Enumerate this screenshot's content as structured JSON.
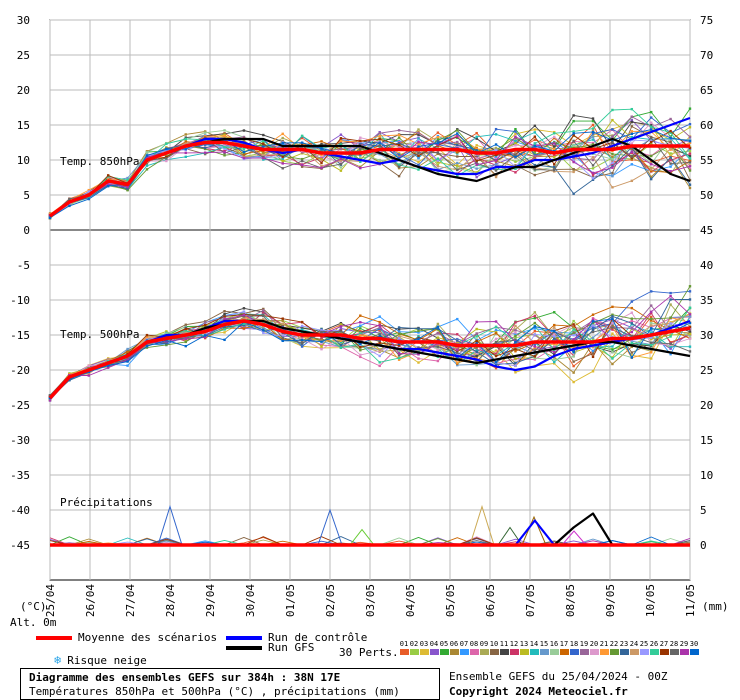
{
  "chart_data": {
    "type": "line",
    "title": "Diagramme des ensembles GEFS sur 384h : 38N 17E",
    "subtitle": "Températures 850hPa et 500hPa (°C) , précipitations (mm)",
    "left_axis": {
      "unit": "(°C)",
      "ticks": [
        30,
        25,
        20,
        15,
        10,
        5,
        0,
        -5,
        -10,
        -15,
        -20,
        -25,
        -30,
        -35,
        -40,
        -45
      ],
      "ylim": [
        -50,
        30
      ]
    },
    "right_axis": {
      "unit": "(mm)",
      "ticks": [
        75,
        70,
        65,
        60,
        55,
        50,
        45,
        40,
        35,
        30,
        25,
        20,
        15,
        10,
        5,
        0
      ]
    },
    "x_unit": "Alt. 0m",
    "x_ticks": [
      "25/04",
      "26/04",
      "27/04",
      "28/04",
      "29/04",
      "30/04",
      "01/05",
      "02/05",
      "03/05",
      "04/05",
      "05/05",
      "06/05",
      "07/05",
      "08/05",
      "09/05",
      "10/05",
      "11/05"
    ],
    "panel_labels": {
      "t850": "Temp. 850hPa",
      "t500": "Temp. 500hPa",
      "precip": "Précipitations"
    },
    "series": [
      {
        "name": "Moyenne des scénarios",
        "color": "#ff0000",
        "t850": [
          2,
          4,
          5,
          7,
          6.5,
          10,
          11,
          12,
          12.5,
          12.5,
          12,
          11.5,
          11.5,
          11.5,
          11,
          11,
          11,
          11.5,
          11.5,
          11.5,
          11.5,
          11.5,
          11,
          11,
          11.5,
          11.5,
          11,
          11.5,
          11.5,
          11.5,
          12,
          12,
          12,
          12
        ],
        "t500": [
          -24,
          -21,
          -20,
          -19,
          -18,
          -16,
          -15.5,
          -15,
          -14.5,
          -13.5,
          -13,
          -13.5,
          -14.5,
          -15,
          -15,
          -15,
          -15.5,
          -15.5,
          -16,
          -16,
          -16,
          -16.5,
          -16.5,
          -16.5,
          -16.5,
          -16,
          -16,
          -16,
          -16,
          -15.5,
          -15.5,
          -15,
          -14.5,
          -14
        ]
      },
      {
        "name": "Run de contrôle",
        "color": "#0000ff",
        "t850": [
          2,
          4,
          5,
          7,
          6.5,
          10,
          11,
          12,
          13,
          13,
          12.5,
          11.5,
          11,
          11.5,
          11,
          10.5,
          10,
          9.5,
          10,
          9,
          8.5,
          8,
          8,
          9,
          9,
          10,
          10,
          10.5,
          11,
          12,
          13,
          14,
          15,
          16
        ],
        "t500": [
          -24,
          -21,
          -20,
          -19,
          -18,
          -16,
          -15,
          -15,
          -14,
          -13,
          -13,
          -13.5,
          -14.5,
          -15,
          -15,
          -15.5,
          -16,
          -16.5,
          -17,
          -17,
          -17.5,
          -18,
          -18.5,
          -19.5,
          -20,
          -19.5,
          -18,
          -17,
          -16.5,
          -16,
          -15.5,
          -15,
          -14,
          -13
        ]
      },
      {
        "name": "Run GFS",
        "color": "#000000",
        "t850": [
          2,
          4,
          5,
          7,
          6.5,
          10,
          11,
          12,
          12.5,
          13,
          13,
          13,
          12,
          12,
          12,
          12,
          12,
          11,
          10,
          9,
          8,
          7.5,
          7,
          8,
          9,
          9,
          10,
          11,
          12,
          13,
          12,
          10,
          8,
          7
        ],
        "t500": [
          -24,
          -21,
          -20,
          -19,
          -18,
          -16,
          -15.5,
          -15,
          -14,
          -13.5,
          -13,
          -13,
          -14,
          -14.5,
          -15,
          -15.5,
          -16,
          -16.5,
          -17,
          -17.5,
          -18,
          -18.5,
          -19,
          -18.5,
          -18,
          -17.5,
          -17,
          -16.5,
          -16,
          -16,
          -16.5,
          -17,
          -17.5,
          -18
        ]
      }
    ],
    "precip": {
      "mean": [
        0,
        0,
        0,
        0,
        0,
        0,
        0,
        0,
        0,
        0,
        0,
        0,
        0,
        0,
        0,
        0,
        0,
        0,
        0,
        0,
        0,
        0,
        0,
        0,
        0,
        0,
        0,
        0,
        0,
        0,
        0,
        0,
        0,
        0
      ],
      "control": [
        0,
        0,
        0,
        0,
        0,
        0,
        0,
        0,
        0,
        0,
        0,
        0,
        0,
        0,
        0,
        0,
        0,
        0,
        0,
        0,
        0,
        0,
        0,
        0,
        0,
        3.5,
        0,
        0,
        0,
        0,
        0,
        0,
        0,
        0
      ],
      "gfs": [
        0,
        0,
        0,
        0,
        0,
        0,
        0,
        0,
        0,
        0,
        0,
        0,
        0,
        0,
        0,
        0,
        0,
        0,
        0,
        0,
        0,
        0,
        0,
        0,
        0,
        0,
        0,
        2.5,
        4.5,
        0,
        0,
        0,
        0,
        0
      ],
      "member_peaks": [
        {
          "day": 3.0,
          "value": 5.5,
          "color": "#3366cc"
        },
        {
          "day": 7.0,
          "value": 5.0,
          "color": "#3366cc"
        },
        {
          "day": 7.8,
          "value": 2.2,
          "color": "#66cc33"
        },
        {
          "day": 10.8,
          "value": 5.5,
          "color": "#ccaa55"
        },
        {
          "day": 11.5,
          "value": 2.5,
          "color": "#336633"
        },
        {
          "day": 12.1,
          "value": 4.0,
          "color": "#996600"
        },
        {
          "day": 13.1,
          "value": 2.0,
          "color": "#cc33cc"
        }
      ]
    },
    "grid": true
  },
  "legend": {
    "mean": "Moyenne des scénarios",
    "control": "Run de contrôle",
    "gfs": "Run GFS",
    "snow": "Risque neige",
    "perts": "30 Perts.",
    "pert_numbers": [
      "01",
      "02",
      "03",
      "04",
      "05",
      "06",
      "07",
      "08",
      "09",
      "10",
      "11",
      "12",
      "13",
      "14",
      "15",
      "16",
      "17",
      "18",
      "19",
      "20",
      "21",
      "22",
      "23",
      "24",
      "25",
      "26",
      "27",
      "28",
      "29",
      "30"
    ],
    "pert_colors": [
      "#e85c28",
      "#99cc44",
      "#ddbb33",
      "#8855cc",
      "#33aa33",
      "#aa8833",
      "#3399ff",
      "#dd66aa",
      "#aaaa55",
      "#886644",
      "#444444",
      "#cc3366",
      "#bbbb22",
      "#22bbbb",
      "#6699cc",
      "#99cc99",
      "#cc6600",
      "#3366cc",
      "#996699",
      "#dd99cc",
      "#ff9933",
      "#669933",
      "#336699",
      "#cc9966",
      "#9999ff",
      "#33cc99",
      "#993300",
      "#666666",
      "#aa33aa",
      "#0066cc"
    ],
    "snow_icon": "snowflake-icon"
  },
  "footer": {
    "title": "Diagramme des ensembles GEFS sur 384h : 38N 17E",
    "subtitle": "Températures 850hPa et 500hPa (°C) , précipitations (mm)",
    "run_info": "Ensemble GEFS du 25/04/2024 - 00Z",
    "copyright": "Copyright 2024 Meteociel.fr"
  }
}
